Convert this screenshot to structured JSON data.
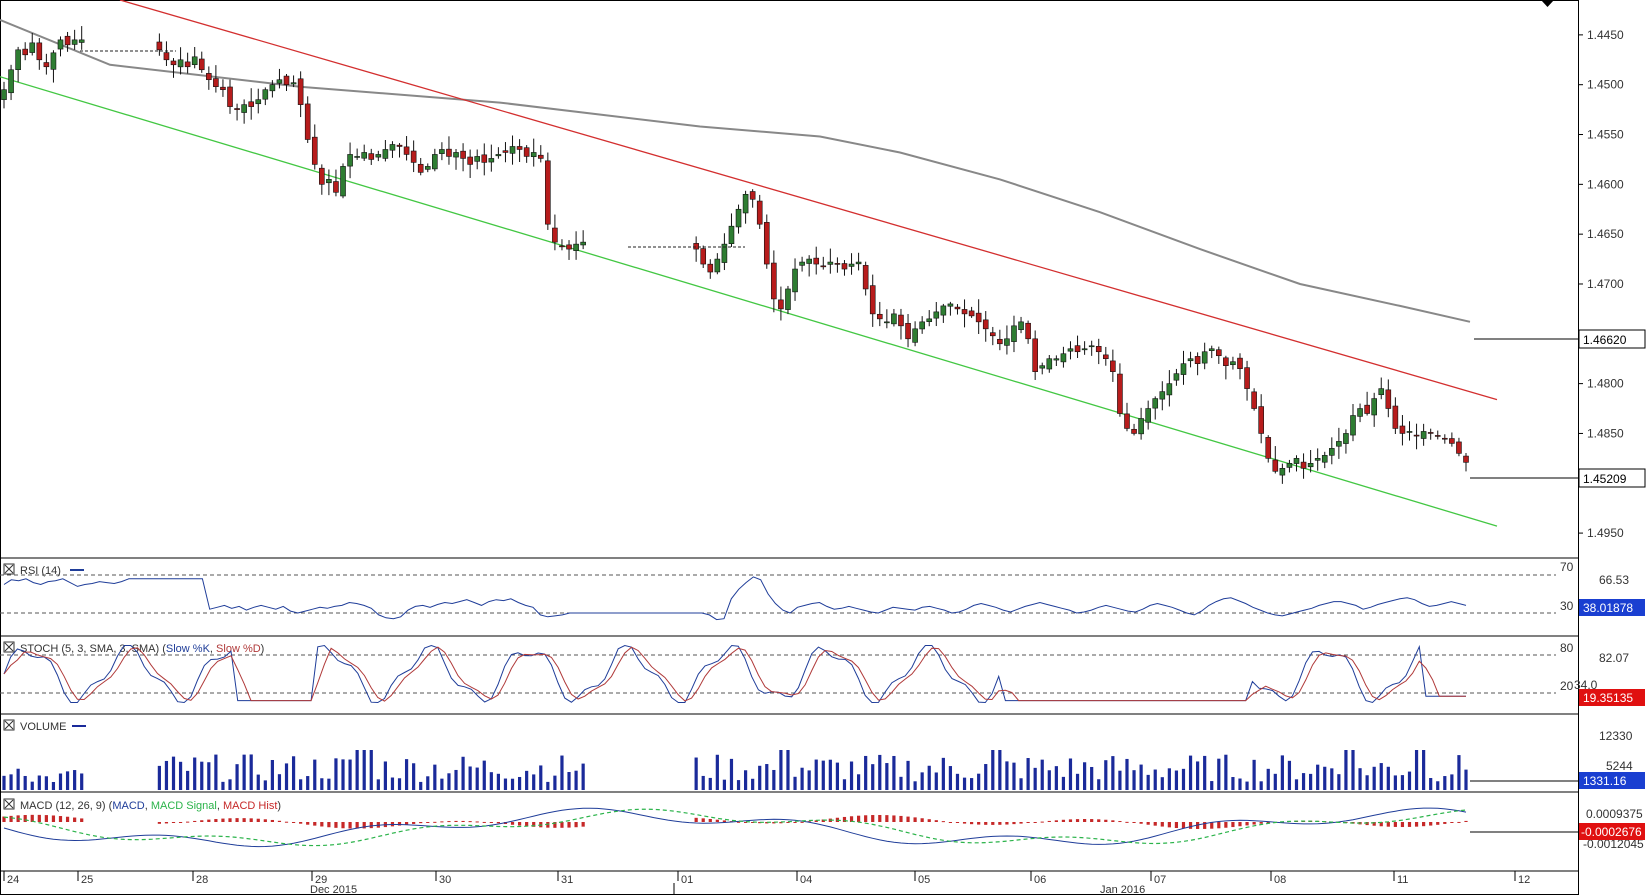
{
  "colors": {
    "up_candle": "#2e7d32",
    "down_candle": "#b71c1c",
    "resistance_line": "#d32f2f",
    "support_line": "#43c743",
    "sma_line": "#888888",
    "indicator_blue": "#1f3d99",
    "stoch_d": "#b03a3a",
    "macd_signal": "#2bb34a",
    "hist": "#c62828",
    "volume": "#1a2a9a",
    "grid": "#555555"
  },
  "price_panel": {
    "y_ticks": [
      "1.4950",
      "1.4900",
      "1.4850",
      "1.4800",
      "1.4750",
      "1.4700",
      "1.4650",
      "1.4600",
      "1.4550",
      "1.4500",
      "1.4450"
    ],
    "sma_value_label": "1.46620",
    "last_price_label": "1.45209",
    "price_range": [
      1.4425,
      1.4985
    ]
  },
  "rsi_panel": {
    "title": "RSI (14)",
    "level_high": "70",
    "level_low": "30",
    "right_label": "66.53",
    "value_label": "38.01878"
  },
  "stoch_panel": {
    "title_prefix": "STOCH (5, 3, SMA, 3, SMA) (",
    "title_k": "Slow %K",
    "title_sep": ", ",
    "title_d": "Slow %D",
    "title_suffix": ")",
    "level_high": "80",
    "level_low": "20",
    "right_label": "82.07",
    "mid_label": "34.0",
    "value_label": "19.35135"
  },
  "volume_panel": {
    "title": "VOLUME",
    "tick_high": "12330",
    "tick_mid": "5244",
    "value_label": "1331.16"
  },
  "macd_panel": {
    "title_prefix": "MACD (12, 26, 9) (",
    "title_macd": "MACD",
    "title_sep1": ", ",
    "title_signal": "MACD Signal",
    "title_sep2": ", ",
    "title_hist": "MACD Hist",
    "title_suffix": ")",
    "tick_top": "0.0009375",
    "value_label": "-0.0002676",
    "tick_bottom": "-0.0012045"
  },
  "x_axis": {
    "day_labels": [
      "24",
      "25",
      "28",
      "29",
      "30",
      "31",
      "01",
      "04",
      "05",
      "06",
      "07",
      "08",
      "11",
      "12"
    ],
    "month_labels": [
      "Dec 2015",
      "Jan 2016"
    ]
  },
  "chart_data": {
    "type": "candlestick",
    "y_ticks": [
      1.445,
      1.45,
      1.455,
      1.46,
      1.465,
      1.47,
      1.475,
      1.48,
      1.485,
      1.49,
      1.495
    ],
    "ylim": [
      1.4425,
      1.4985
    ],
    "x_categories": [
      "24",
      "25",
      "28",
      "29",
      "30",
      "31",
      "01",
      "04",
      "05",
      "06",
      "07",
      "08",
      "11",
      "12"
    ],
    "price_closes": [
      1.4895,
      1.4915,
      1.4935,
      1.493,
      1.4942,
      1.4925,
      1.4918,
      1.4932,
      1.4945,
      1.494,
      1.4945,
      1.4945,
      1.4945,
      1.4945,
      1.4945,
      1.4945,
      1.4945,
      1.4945,
      1.4945,
      1.4945,
      1.4945,
      1.4945,
      1.4935,
      1.4925,
      1.492,
      1.4925,
      1.4918,
      1.4928,
      1.4915,
      1.4905,
      1.4898,
      1.4895,
      1.4878,
      1.4875,
      1.488,
      1.4878,
      1.4885,
      1.4895,
      1.49,
      1.4905,
      1.49,
      1.4902,
      1.488,
      1.4845,
      1.482,
      1.48,
      1.4805,
      1.4792,
      1.4818,
      1.483,
      1.4828,
      1.4832,
      1.4825,
      1.483,
      1.4835,
      1.484,
      1.4838,
      1.483,
      1.4822,
      1.4812,
      1.4818,
      1.483,
      1.4835,
      1.4828,
      1.4832,
      1.4826,
      1.482,
      1.4828,
      1.4822,
      1.4826,
      1.483,
      1.4832,
      1.4838,
      1.4835,
      1.4828,
      1.4832,
      1.4826,
      1.476,
      1.4742,
      1.4738,
      1.4735,
      1.474,
      1.4742,
      1.4742,
      1.4742,
      1.4742,
      1.4742,
      1.4742,
      1.4742,
      1.4742,
      1.4742,
      1.4742,
      1.4742,
      1.4742,
      1.4742,
      1.4742,
      1.4742,
      1.4742,
      1.4735,
      1.472,
      1.4712,
      1.4725,
      1.474,
      1.4758,
      1.4775,
      1.479,
      1.4785,
      1.476,
      1.472,
      1.4685,
      1.4675,
      1.4695,
      1.4715,
      1.4722,
      1.4725,
      1.472,
      1.4718,
      1.4722,
      1.472,
      1.4715,
      1.472,
      1.4722,
      1.4695,
      1.467,
      1.4665,
      1.4662,
      1.467,
      1.4658,
      1.4645,
      1.4655,
      1.4662,
      1.4665,
      1.4672,
      1.4678,
      1.468,
      1.4675,
      1.467,
      1.4668,
      1.4662,
      1.4655,
      1.4648,
      1.464,
      1.4645,
      1.4658,
      1.4662,
      1.4645,
      1.4612,
      1.4618,
      1.4625,
      1.4625,
      1.463,
      1.4635,
      1.4632,
      1.4635,
      1.4638,
      1.4632,
      1.4625,
      1.4612,
      1.457,
      1.4555,
      1.455,
      1.4565,
      1.4575,
      1.4585,
      1.4592,
      1.46,
      1.461,
      1.462,
      1.4625,
      1.462,
      1.4632,
      1.4635,
      1.4628,
      1.4618,
      1.4622,
      1.4615,
      1.4595,
      1.4575,
      1.455,
      1.4525,
      1.4512,
      1.4515,
      1.452,
      1.4525,
      1.4515,
      1.452,
      1.4525,
      1.4528,
      1.4535,
      1.4542,
      1.455,
      1.4568,
      1.4575,
      1.457,
      1.4585,
      1.4595,
      1.4575,
      1.4555,
      1.455,
      1.4552,
      1.4548,
      1.4552,
      1.455,
      1.4548,
      1.4545,
      1.454,
      1.453,
      1.4521
    ],
    "sma_200": {
      "points": [
        [
          0,
          1.4965
        ],
        [
          110,
          1.492
        ],
        [
          300,
          1.4898
        ],
        [
          500,
          1.4882
        ],
        [
          700,
          1.4858
        ],
        [
          820,
          1.4848
        ],
        [
          900,
          1.4832
        ],
        [
          1000,
          1.4805
        ],
        [
          1100,
          1.4772
        ],
        [
          1200,
          1.4735
        ],
        [
          1300,
          1.47
        ],
        [
          1400,
          1.4678
        ],
        [
          1470,
          1.4662
        ]
      ],
      "value": 1.4662
    },
    "resistance_line": {
      "from": [
        120,
        1.4985
      ],
      "to": [
        1497,
        1.4584
      ]
    },
    "support_line": {
      "from": [
        0,
        1.4908
      ],
      "to": [
        1497,
        1.4457
      ]
    },
    "rsi": {
      "levels": [
        30,
        70
      ],
      "values": [
        60,
        65,
        64,
        66,
        62,
        60,
        63,
        64,
        66,
        62,
        58,
        60,
        61,
        63,
        62,
        61,
        63,
        66,
        66,
        66,
        66,
        66,
        66,
        66,
        66,
        66,
        66,
        66,
        34,
        36,
        38,
        35,
        37,
        33,
        36,
        38,
        36,
        34,
        37,
        32,
        30,
        32,
        34,
        36,
        35,
        37,
        38,
        41,
        40,
        38,
        35,
        28,
        25,
        24,
        26,
        33,
        37,
        38,
        36,
        39,
        41,
        40,
        42,
        44,
        41,
        38,
        42,
        44,
        43,
        45,
        41,
        38,
        36,
        28,
        26,
        27,
        28,
        30,
        30,
        30,
        30,
        30,
        30,
        30,
        30,
        30,
        30,
        30,
        30,
        30,
        30,
        30,
        30,
        30,
        30,
        30,
        28,
        23,
        24,
        45,
        55,
        62,
        68,
        65,
        50,
        40,
        33,
        30,
        36,
        38,
        40,
        41,
        37,
        34,
        35,
        37,
        35,
        33,
        31,
        30,
        33,
        36,
        35,
        34,
        33,
        36,
        37,
        35,
        33,
        30,
        31,
        34,
        38,
        40,
        38,
        36,
        33,
        31,
        34,
        37,
        39,
        41,
        39,
        37,
        35,
        33,
        30,
        31,
        33,
        36,
        38,
        36,
        34,
        32,
        31,
        34,
        38,
        40,
        38,
        36,
        33,
        30,
        28,
        32,
        38,
        42,
        45,
        46,
        43,
        40,
        36,
        33,
        30,
        28,
        27,
        29,
        31,
        33,
        35,
        38,
        40,
        42,
        42,
        40,
        38,
        34,
        36,
        39,
        41,
        43,
        45,
        46,
        44,
        40,
        37,
        38,
        40,
        42,
        40,
        38
      ],
      "value": 38.01878,
      "right_label": 66.53
    },
    "stochastic": {
      "levels": [
        20,
        80
      ],
      "value": 19.35135,
      "right_label": 82.07,
      "mid_label": 34.0
    },
    "volume": {
      "ticks": [
        12330,
        5244
      ],
      "value": 1331.16
    },
    "macd": {
      "params": [
        12,
        26,
        9
      ],
      "value": -0.0002676,
      "ticks": [
        0.0009375,
        -0.0012045
      ]
    }
  }
}
